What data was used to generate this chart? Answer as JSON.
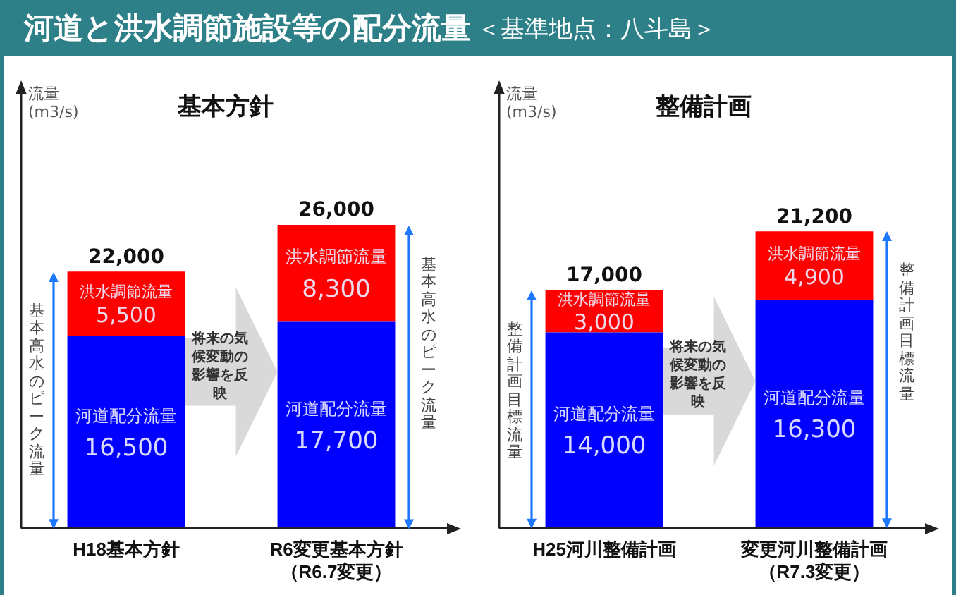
{
  "chart_data": [
    {
      "type": "bar",
      "title": "基本方針",
      "ylabel": "流量\n(m3/s)",
      "categories": [
        "H18基本方針",
        "R6変更基本方針（R6.7変更）"
      ],
      "stacked": true,
      "grid": false,
      "legend": false,
      "tick_labels": "x",
      "totals": [
        "22,000",
        "26,000"
      ],
      "series": [
        {
          "name": "河道配分流量",
          "color": "#0000ff",
          "values": [
            16500,
            17700
          ],
          "value_labels": [
            "16,500",
            "17,700"
          ]
        },
        {
          "name": "洪水調節流量",
          "color": "#ff0000",
          "values": [
            5500,
            8300
          ],
          "value_labels": [
            "5,500",
            "8,300"
          ]
        }
      ],
      "annotations": [
        "将来の気候変動の影響を反映",
        "基本高水のピーク流量",
        "基本高水のピーク流量",
        "河道と洪水調節施設等の配分流量",
        "＜基準地点：八斗島＞"
      ]
    },
    {
      "type": "bar",
      "title": "整備計画",
      "ylabel": "流量\n(m3/s)",
      "categories": [
        "H25河川整備計画",
        "変更河川整備計画（R7.3変更）"
      ],
      "stacked": true,
      "grid": false,
      "legend": false,
      "tick_labels": "x",
      "totals": [
        "17,000",
        "21,200"
      ],
      "series": [
        {
          "name": "河道配分流量",
          "color": "#0000ff",
          "values": [
            14000,
            16300
          ],
          "value_labels": [
            "14,000",
            "16,300"
          ]
        },
        {
          "name": "洪水調節流量",
          "color": "#ff0000",
          "values": [
            3000,
            4900
          ],
          "value_labels": [
            "3,000",
            "4,900"
          ]
        }
      ],
      "annotations": [
        "将来の気候変動の影響を反映",
        "整備計画目標流量",
        "整備計画目標流量"
      ]
    }
  ]
}
